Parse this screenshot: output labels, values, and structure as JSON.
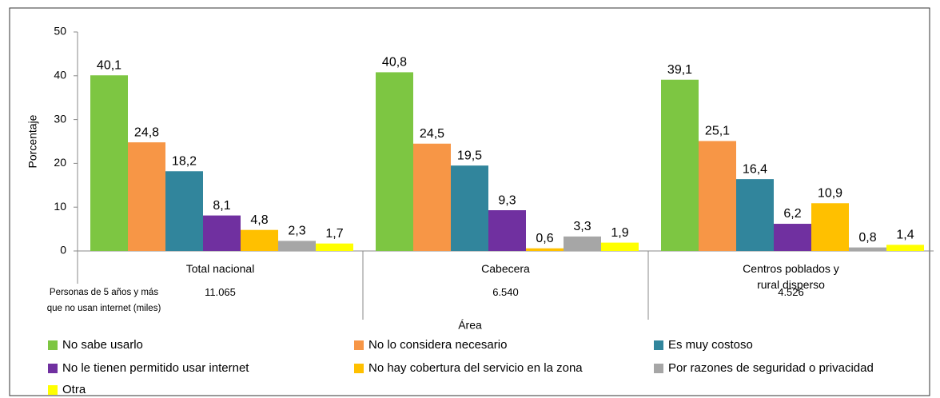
{
  "chart_data": {
    "type": "bar",
    "y_label": "Porcentaje",
    "x_label": "Área",
    "categories": [
      "Total nacional",
      "Cabecera",
      "Centros poblados y\nrural disperso"
    ],
    "ylim": [
      0,
      50
    ],
    "yticks": [
      0,
      10,
      20,
      30,
      40,
      50
    ],
    "legend": "bottom",
    "series": [
      {
        "name": "No sabe usarlo",
        "color": "#7dc642",
        "values": [
          40.1,
          40.8,
          39.1
        ],
        "value_labels": [
          "40,1",
          "40,8",
          "39,1"
        ]
      },
      {
        "name": "No lo considera necesario",
        "color": "#f79646",
        "values": [
          24.8,
          24.5,
          25.1
        ],
        "value_labels": [
          "24,8",
          "24,5",
          "25,1"
        ]
      },
      {
        "name": "Es muy costoso",
        "color": "#31859c",
        "values": [
          18.2,
          19.5,
          16.4
        ],
        "value_labels": [
          "18,2",
          "19,5",
          "16,4"
        ]
      },
      {
        "name": "No le tienen permitido usar internet",
        "color": "#7030a0",
        "values": [
          8.1,
          9.3,
          6.2
        ],
        "value_labels": [
          "8,1",
          "9,3",
          "6,2"
        ]
      },
      {
        "name": "No hay cobertura del servicio en la zona",
        "color": "#ffc000",
        "values": [
          4.8,
          0.6,
          10.9
        ],
        "value_labels": [
          "4,8",
          "0,6",
          "10,9"
        ]
      },
      {
        "name": "Por razones de seguridad o privacidad",
        "color": "#a6a6a6",
        "values": [
          2.3,
          3.3,
          0.8
        ],
        "value_labels": [
          "2,3",
          "3,3",
          "0,8"
        ]
      },
      {
        "name": "Otra",
        "color": "#ffff00",
        "values": [
          1.7,
          1.9,
          1.4
        ],
        "value_labels": [
          "1,7",
          "1,9",
          "1,4"
        ]
      }
    ],
    "population_row": {
      "label": "Personas de 5 años y más\nque no usan internet (miles)",
      "values": [
        11065,
        6540,
        4526
      ],
      "value_labels": [
        "11.065",
        "6.540",
        "4.526"
      ]
    }
  }
}
